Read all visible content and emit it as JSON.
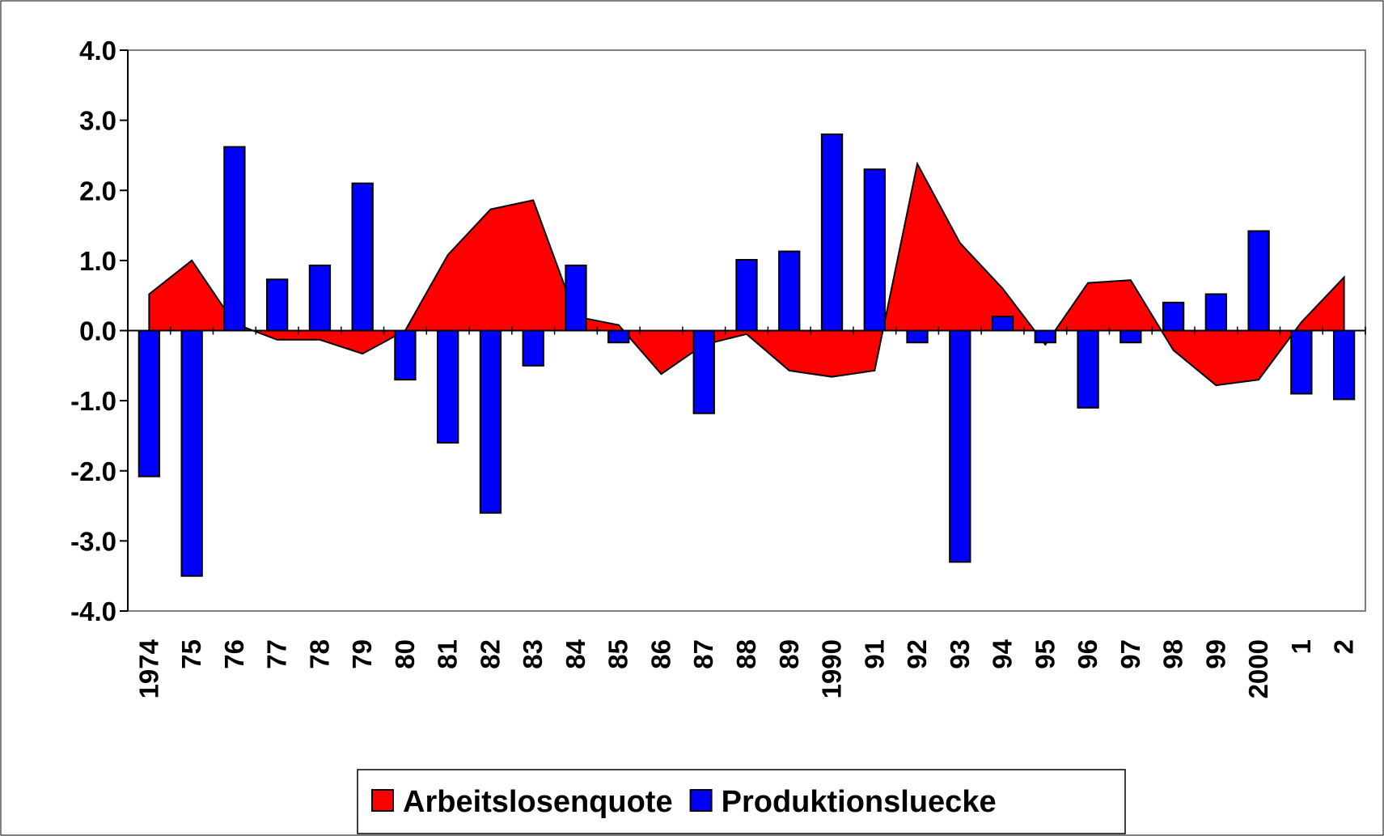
{
  "chart_data": {
    "type": "bar_area",
    "categories": [
      "1974",
      "75",
      "76",
      "77",
      "78",
      "79",
      "80",
      "81",
      "82",
      "83",
      "84",
      "85",
      "86",
      "87",
      "88",
      "89",
      "1990",
      "91",
      "92",
      "93",
      "94",
      "95",
      "96",
      "97",
      "98",
      "99",
      "2000",
      "1",
      "2"
    ],
    "series": [
      {
        "name": "Arbeitslosenquote",
        "color": "#ff0000",
        "kind": "area",
        "values": [
          0.52,
          1.0,
          0.1,
          -0.13,
          -0.13,
          -0.33,
          0,
          1.08,
          1.73,
          1.86,
          0.2,
          0.08,
          -0.62,
          -0.2,
          -0.05,
          -0.57,
          -0.66,
          -0.57,
          2.38,
          1.25,
          0.6,
          -0.2,
          0.68,
          0.72,
          -0.28,
          -0.78,
          -0.7,
          0.12,
          0.76
        ]
      },
      {
        "name": "Produktionsluecke",
        "color": "#0000ff",
        "kind": "bar",
        "values": [
          -2.08,
          -3.5,
          2.62,
          0.73,
          0.93,
          2.1,
          -0.7,
          -1.6,
          -2.6,
          -0.5,
          0.93,
          -0.17,
          0,
          -1.18,
          1.01,
          1.13,
          2.8,
          2.3,
          -0.17,
          -3.3,
          0.2,
          -0.17,
          -1.1,
          -0.17,
          0.4,
          0.52,
          1.42,
          -0.9,
          -0.98
        ]
      }
    ],
    "ylim": [
      -4,
      4
    ],
    "yticks": [
      {
        "value": 4,
        "label": "4.0"
      },
      {
        "value": 3,
        "label": "3.0"
      },
      {
        "value": 2,
        "label": "2.0"
      },
      {
        "value": 1,
        "label": "1.0"
      },
      {
        "value": 0,
        "label": "0.0"
      },
      {
        "value": -1,
        "label": "-1.0"
      },
      {
        "value": -2,
        "label": "-2.0"
      },
      {
        "value": -3,
        "label": "-3.0"
      },
      {
        "value": -4,
        "label": "-4.0"
      }
    ],
    "legend": "bottom"
  }
}
